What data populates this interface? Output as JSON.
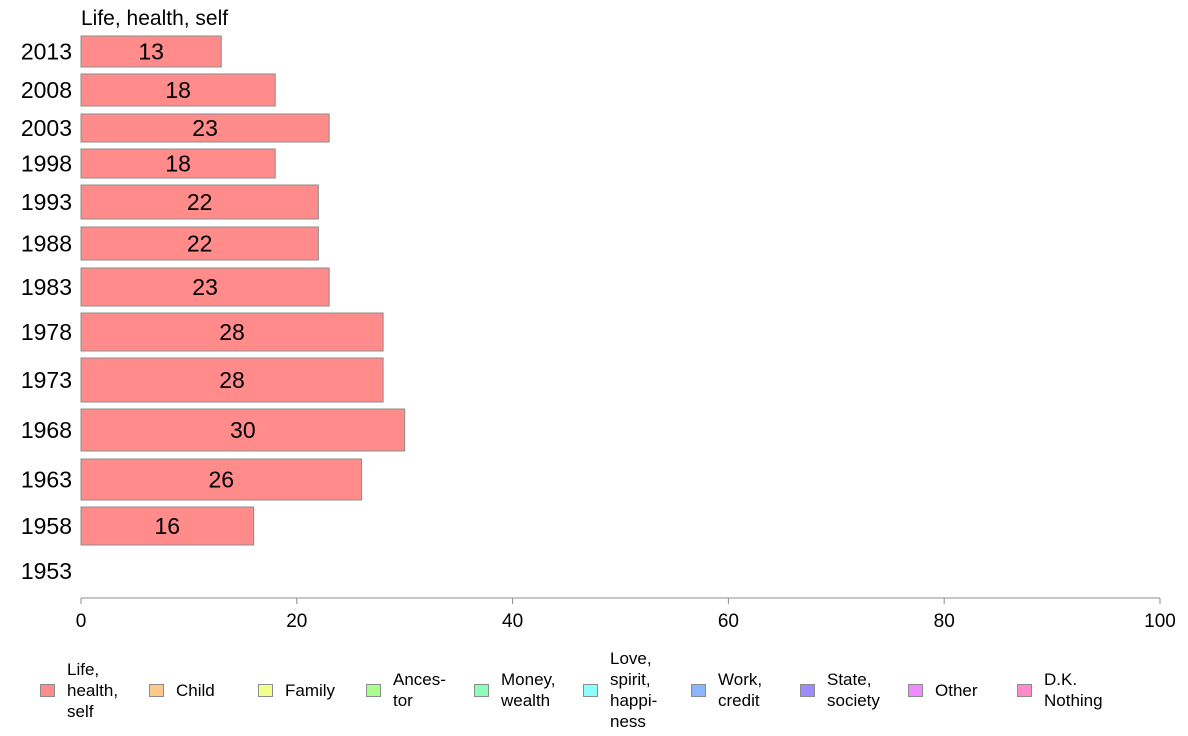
{
  "chart_data": {
    "type": "bar",
    "orientation": "horizontal",
    "title": "Life, health, self",
    "categories": [
      "2013",
      "2008",
      "2003",
      "1998",
      "1993",
      "1988",
      "1983",
      "1978",
      "1973",
      "1968",
      "1963",
      "1958",
      "1953"
    ],
    "series": [
      {
        "name": "Life, health, self",
        "color": "#ff8b8b",
        "values": [
          13,
          18,
          23,
          18,
          22,
          22,
          23,
          28,
          28,
          30,
          26,
          16,
          null
        ],
        "data_labels": [
          "13",
          "18",
          "23",
          "18",
          "22",
          "22",
          "23",
          "28",
          "28",
          "30",
          "26",
          "16",
          ""
        ]
      }
    ],
    "xlim": [
      0,
      100
    ],
    "xticks": [
      "0",
      "20",
      "40",
      "60",
      "80",
      "100"
    ],
    "grid": false,
    "legend_position": "bottom",
    "legend": [
      {
        "label": "Life,\nhealth,\nself",
        "color": "#ff8b8b"
      },
      {
        "label": "Child",
        "color": "#ffc98b"
      },
      {
        "label": "Family",
        "color": "#f2ff8b"
      },
      {
        "label": "Ances-\ntor",
        "color": "#a8ff8b"
      },
      {
        "label": "Money,\nwealth",
        "color": "#8bffb8"
      },
      {
        "label": "Love,\nspirit,\nhappi-\nness",
        "color": "#8bffff"
      },
      {
        "label": "Work,\ncredit",
        "color": "#8bb5ff"
      },
      {
        "label": "State,\nsociety",
        "color": "#9e8bff"
      },
      {
        "label": "Other",
        "color": "#ee8bff"
      },
      {
        "label": "D.K.\nNothing",
        "color": "#ff8bcc"
      }
    ]
  }
}
